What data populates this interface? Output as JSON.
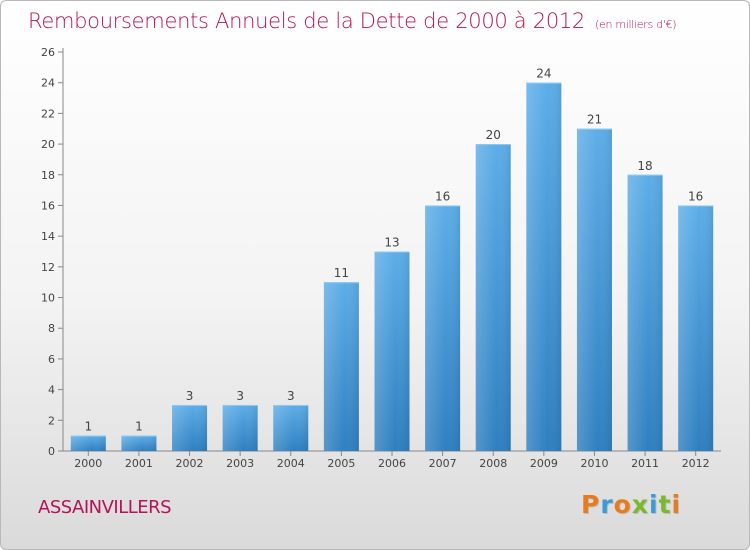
{
  "title": "Remboursements Annuels de la Dette de 2000 à 2012",
  "unit": "(en milliers d'€)",
  "commune": "ASSAINVILLERS",
  "logo": {
    "text": "Proxiti",
    "letter_colors": [
      "#e87b1e",
      "#3a9bd5",
      "#e87b1e",
      "#7cb82f",
      "#3a9bd5",
      "#7cb82f",
      "#e87b1e"
    ]
  },
  "colors": {
    "title": "#b5125a",
    "bar_top": "#5dade8",
    "bar_bottom": "#2f7fc0"
  },
  "chart_data": {
    "type": "bar",
    "categories": [
      "2000",
      "2001",
      "2002",
      "2003",
      "2004",
      "2005",
      "2006",
      "2007",
      "2008",
      "2009",
      "2010",
      "2011",
      "2012"
    ],
    "values": [
      1,
      1,
      3,
      3,
      3,
      11,
      13,
      16,
      20,
      24,
      21,
      18,
      16
    ],
    "ylim": [
      0,
      26
    ],
    "yticks": [
      0,
      2,
      4,
      6,
      8,
      10,
      12,
      14,
      16,
      18,
      20,
      22,
      24,
      26
    ],
    "grid": false,
    "data_labels": true
  }
}
